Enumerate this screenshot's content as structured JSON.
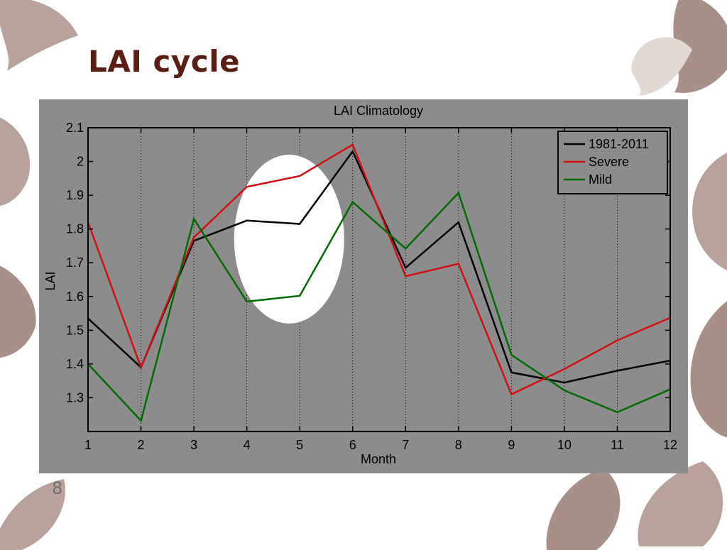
{
  "slide": {
    "title": "LAI cycle",
    "page_number": "8"
  },
  "colors": {
    "title": "#5a1e14",
    "figure_background": "#8c8c8c",
    "highlight": "#ffffff",
    "leaf": "#b8a29b"
  },
  "chart_data": {
    "type": "line",
    "title": "LAI Climatology",
    "xlabel": "Month",
    "ylabel": "LAI",
    "x": [
      1,
      2,
      3,
      4,
      5,
      6,
      7,
      8,
      9,
      10,
      11,
      12
    ],
    "xlim": [
      1,
      12
    ],
    "ylim": [
      1.2,
      2.1
    ],
    "x_ticks": [
      "1",
      "2",
      "3",
      "4",
      "5",
      "6",
      "7",
      "8",
      "9",
      "10",
      "11",
      "12"
    ],
    "y_ticks": [
      "1.3",
      "1.4",
      "1.5",
      "1.6",
      "1.7",
      "1.8",
      "1.9",
      "2",
      "2.1"
    ],
    "y_tick_values": [
      1.3,
      1.4,
      1.5,
      1.6,
      1.7,
      1.8,
      1.9,
      2.0,
      2.1
    ],
    "grid": "vertical dotted",
    "legend_position": "top-right",
    "series": [
      {
        "name": "1981-2011",
        "color": "#000000",
        "values": [
          1.535,
          1.39,
          1.765,
          1.825,
          1.815,
          2.03,
          1.685,
          1.82,
          1.375,
          1.345,
          1.38,
          1.41
        ]
      },
      {
        "name": "Severe",
        "color": "#d01010",
        "values": [
          1.82,
          1.39,
          1.775,
          1.925,
          1.957,
          2.05,
          1.66,
          1.697,
          1.31,
          1.385,
          1.47,
          1.537
        ]
      },
      {
        "name": "Mild",
        "color": "#006b00",
        "values": [
          1.4,
          1.232,
          1.83,
          1.585,
          1.602,
          1.88,
          1.742,
          1.907,
          1.427,
          1.322,
          1.257,
          1.325
        ]
      }
    ],
    "annotation": {
      "shape": "ellipse",
      "color": "#ffffff",
      "x_range": [
        3.76,
        5.84
      ],
      "y_range": [
        1.52,
        2.02
      ]
    }
  }
}
